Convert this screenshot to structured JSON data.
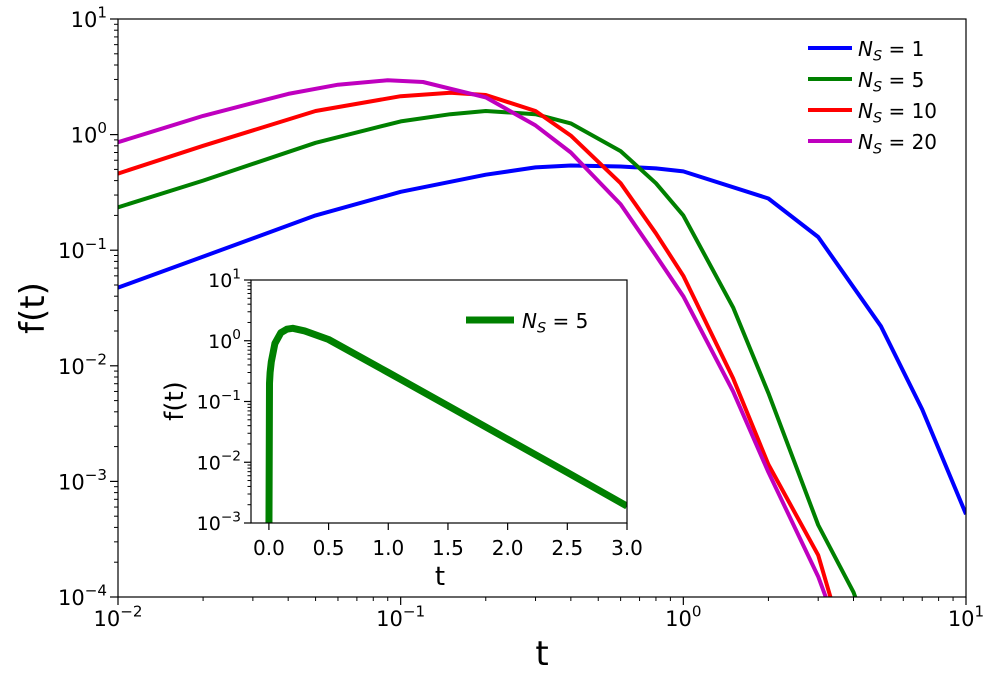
{
  "chart_data": [
    {
      "type": "line",
      "xlabel": "t",
      "ylabel": "f(t)",
      "xscale": "log",
      "yscale": "log",
      "xlim": [
        0.01,
        10
      ],
      "ylim": [
        0.0001,
        10
      ],
      "xticks": [
        {
          "base": "10",
          "exp": "−2"
        },
        {
          "base": "10",
          "exp": "−1"
        },
        {
          "base": "10",
          "exp": "0"
        },
        {
          "base": "10",
          "exp": "1"
        }
      ],
      "yticks": [
        {
          "base": "10",
          "exp": "−4"
        },
        {
          "base": "10",
          "exp": "−3"
        },
        {
          "base": "10",
          "exp": "−2"
        },
        {
          "base": "10",
          "exp": "−1"
        },
        {
          "base": "10",
          "exp": "0"
        },
        {
          "base": "10",
          "exp": "1"
        }
      ],
      "legend_position": "top-right",
      "grid": false,
      "series": [
        {
          "name": "N_S = 1",
          "label_main": "N",
          "label_sub": "S",
          "label_rest": " = 1",
          "color": "#0000ff",
          "x": [
            0.01,
            0.02,
            0.05,
            0.1,
            0.2,
            0.3,
            0.4,
            0.6,
            0.8,
            1.0,
            2.0,
            3.0,
            5.0,
            7.0,
            10.0
          ],
          "y": [
            0.0475,
            0.088,
            0.2,
            0.32,
            0.45,
            0.52,
            0.54,
            0.53,
            0.51,
            0.48,
            0.28,
            0.13,
            0.022,
            0.0042,
            0.00052
          ]
        },
        {
          "name": "N_S = 5",
          "label_main": "N",
          "label_sub": "S",
          "label_rest": " = 5",
          "color": "#008000",
          "x": [
            0.01,
            0.02,
            0.05,
            0.1,
            0.15,
            0.2,
            0.3,
            0.4,
            0.6,
            0.8,
            1.0,
            1.5,
            2.0,
            3.0,
            4.0,
            4.5
          ],
          "y": [
            0.235,
            0.4,
            0.85,
            1.3,
            1.5,
            1.6,
            1.5,
            1.25,
            0.72,
            0.38,
            0.2,
            0.032,
            0.0058,
            0.00042,
            0.00011,
            5e-05
          ]
        },
        {
          "name": "N_S = 10",
          "label_main": "N",
          "label_sub": "S",
          "label_rest": " = 10",
          "color": "#ff0000",
          "x": [
            0.01,
            0.02,
            0.05,
            0.1,
            0.15,
            0.2,
            0.3,
            0.4,
            0.6,
            0.8,
            1.0,
            1.5,
            2.0,
            3.0,
            3.6
          ],
          "y": [
            0.46,
            0.8,
            1.6,
            2.15,
            2.3,
            2.2,
            1.6,
            0.98,
            0.38,
            0.14,
            0.06,
            0.0078,
            0.0014,
            0.00023,
            5e-05
          ]
        },
        {
          "name": "N_S = 20",
          "label_main": "N",
          "label_sub": "S",
          "label_rest": " = 20",
          "color": "#bf00bf",
          "x": [
            0.01,
            0.02,
            0.04,
            0.06,
            0.09,
            0.12,
            0.2,
            0.3,
            0.4,
            0.6,
            0.8,
            1.0,
            1.5,
            2.0,
            3.0,
            3.3
          ],
          "y": [
            0.86,
            1.45,
            2.25,
            2.7,
            2.95,
            2.85,
            2.1,
            1.2,
            0.7,
            0.25,
            0.09,
            0.04,
            0.006,
            0.0012,
            0.00015,
            8e-05
          ]
        }
      ]
    },
    {
      "type": "line",
      "inset": true,
      "xlabel": "t",
      "ylabel": "f(t)",
      "xscale": "linear",
      "yscale": "log",
      "xlim": [
        -0.15,
        3.0
      ],
      "ylim": [
        0.001,
        10
      ],
      "xticks": [
        "0.0",
        "0.5",
        "1.0",
        "1.5",
        "2.0",
        "2.5",
        "3.0"
      ],
      "xtick_values": [
        0,
        0.5,
        1.0,
        1.5,
        2.0,
        2.5,
        3.0
      ],
      "yticks": [
        {
          "base": "10",
          "exp": "−3"
        },
        {
          "base": "10",
          "exp": "−2"
        },
        {
          "base": "10",
          "exp": "−1"
        },
        {
          "base": "10",
          "exp": "0"
        },
        {
          "base": "10",
          "exp": "1"
        }
      ],
      "legend_position": "top-right",
      "series": [
        {
          "name": "N_S = 5",
          "label_main": "N",
          "label_sub": "S",
          "label_rest": " = 5",
          "color": "#008000",
          "x": [
            0.0,
            0.005,
            0.01,
            0.02,
            0.05,
            0.1,
            0.15,
            0.2,
            0.3,
            0.5,
            1.0,
            1.5,
            2.0,
            2.5,
            3.0
          ],
          "y": [
            0.0005,
            0.2,
            0.3,
            0.45,
            0.9,
            1.35,
            1.55,
            1.6,
            1.45,
            1.05,
            0.3,
            0.085,
            0.024,
            0.0068,
            0.0019
          ]
        }
      ]
    }
  ]
}
